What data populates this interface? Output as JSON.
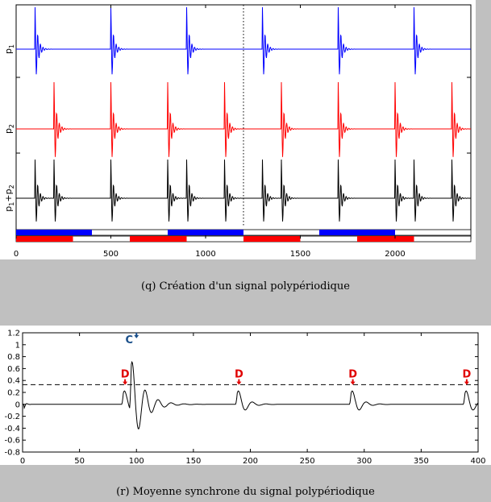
{
  "captions": {
    "q": "(q) Création d'un signal polypériodique",
    "r": "(r) Moyenne synchrone du signal polypériodique"
  },
  "colors": {
    "p1": "#0000ff",
    "p2": "#ff0000",
    "sum": "#000000",
    "annotation_c": "#1a4f8a",
    "annotation_d": "#e00000",
    "arrow_c": "#1a4f8a",
    "arrow_d": "#e00000"
  },
  "chart_data": [
    {
      "type": "line",
      "panel": "q",
      "xlim": [
        0,
        2400
      ],
      "x_ticks": [
        0,
        500,
        1000,
        1500,
        2000
      ],
      "x_tick_labels": [
        "0",
        "500",
        "1000",
        "1500",
        "2000"
      ],
      "grid": false,
      "series": [
        {
          "label": "p1",
          "label_main": "p",
          "label_sub": "1",
          "impulse_x": [
            100,
            500,
            900,
            1300,
            1700,
            2100
          ],
          "color": "#0000ff"
        },
        {
          "label": "p2",
          "label_main": "p",
          "label_sub": "2",
          "impulse_x": [
            200,
            500,
            800,
            1100,
            1400,
            1700,
            2000,
            2300
          ],
          "color": "#ff0000"
        },
        {
          "label": "p1+p2",
          "label_main": "p",
          "label_sub": "1",
          "label_plus": "+p",
          "label_sub2": "2",
          "impulse_x": [
            100,
            200,
            500,
            800,
            900,
            1100,
            1300,
            1400,
            1700,
            2000,
            2100,
            2300
          ],
          "color": "#000000"
        }
      ],
      "vertical_marker_x": 1200,
      "period_bars": [
        {
          "name": "p1-periods",
          "color": "#0000ff",
          "segments": [
            [
              0,
              400
            ],
            [
              800,
              1200
            ],
            [
              1600,
              2000
            ]
          ]
        },
        {
          "name": "p2-periods",
          "color": "#ff0000",
          "segments": [
            [
              0,
              300
            ],
            [
              600,
              900
            ],
            [
              1200,
              1500
            ],
            [
              1800,
              2100
            ]
          ]
        }
      ]
    },
    {
      "type": "line",
      "panel": "r",
      "xlim": [
        0,
        400
      ],
      "ylim": [
        -0.8,
        1.2
      ],
      "x_ticks": [
        0,
        50,
        100,
        150,
        200,
        250,
        300,
        350,
        400
      ],
      "y_ticks": [
        -0.8,
        -0.6,
        -0.4,
        -0.2,
        0,
        0.2,
        0.4,
        0.6,
        0.8,
        1,
        1.2
      ],
      "x_tick_labels": [
        "0",
        "50",
        "100",
        "150",
        "200",
        "250",
        "300",
        "350",
        "400"
      ],
      "y_tick_labels": [
        "-0.8",
        "-0.6",
        "-0.4",
        "-0.2",
        "0",
        "0.2",
        "0.4",
        "0.6",
        "0.8",
        "1",
        "1.2"
      ],
      "threshold_y": 0.33,
      "grid": false,
      "peaks": [
        {
          "label": "C",
          "x": 100,
          "y": 1.08
        },
        {
          "label": "D",
          "x": 90,
          "y": 0.3
        },
        {
          "label": "D",
          "x": 190,
          "y": 0.3
        },
        {
          "label": "D",
          "x": 290,
          "y": 0.3
        },
        {
          "label": "D",
          "x": 390,
          "y": 0.3
        }
      ]
    }
  ]
}
